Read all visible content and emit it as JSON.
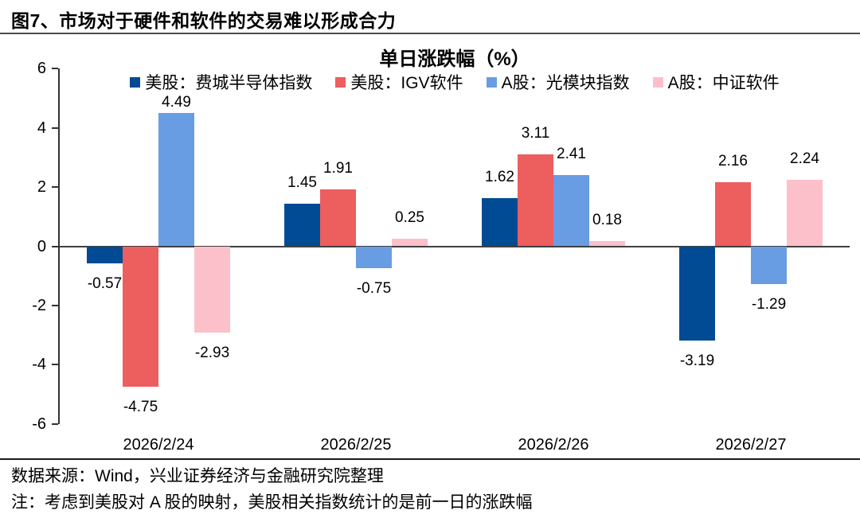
{
  "page": {
    "figure_title": "图7、市场对于硬件和软件的交易难以形成合力",
    "source_note": "数据来源：Wind，兴业证券经济与金融研究院整理",
    "footnote": "注：考虑到美股对 A 股的映射，美股相关指数统计的是前一日的涨跌幅"
  },
  "chart_data": {
    "type": "bar",
    "title": "单日涨跌幅（%）",
    "categories": [
      "2026/2/24",
      "2026/2/25",
      "2026/2/26",
      "2026/2/27"
    ],
    "series": [
      {
        "name": "美股：费城半导体指数",
        "color": "#004B93",
        "values": [
          -0.57,
          1.45,
          1.62,
          -3.19
        ]
      },
      {
        "name": "美股：IGV软件",
        "color": "#ED5E5F",
        "values": [
          -4.75,
          1.91,
          3.11,
          2.16
        ]
      },
      {
        "name": "A股：光模块指数",
        "color": "#689DE3",
        "values": [
          4.49,
          -0.75,
          2.41,
          -1.29
        ]
      },
      {
        "name": "A股：中证软件",
        "color": "#FCC0CB",
        "values": [
          -2.93,
          0.25,
          0.18,
          2.24
        ]
      }
    ],
    "ylim": [
      -6,
      6
    ],
    "y_ticks": [
      6,
      4,
      2,
      0,
      -2,
      -4,
      -6
    ],
    "grid": false,
    "legend_position": "top",
    "value_labels": true,
    "value_label_decimals": 2,
    "label_gap_default": 15,
    "label_gap_overrides": [
      {
        "series": 2,
        "category": 0,
        "gap": 2
      }
    ]
  }
}
